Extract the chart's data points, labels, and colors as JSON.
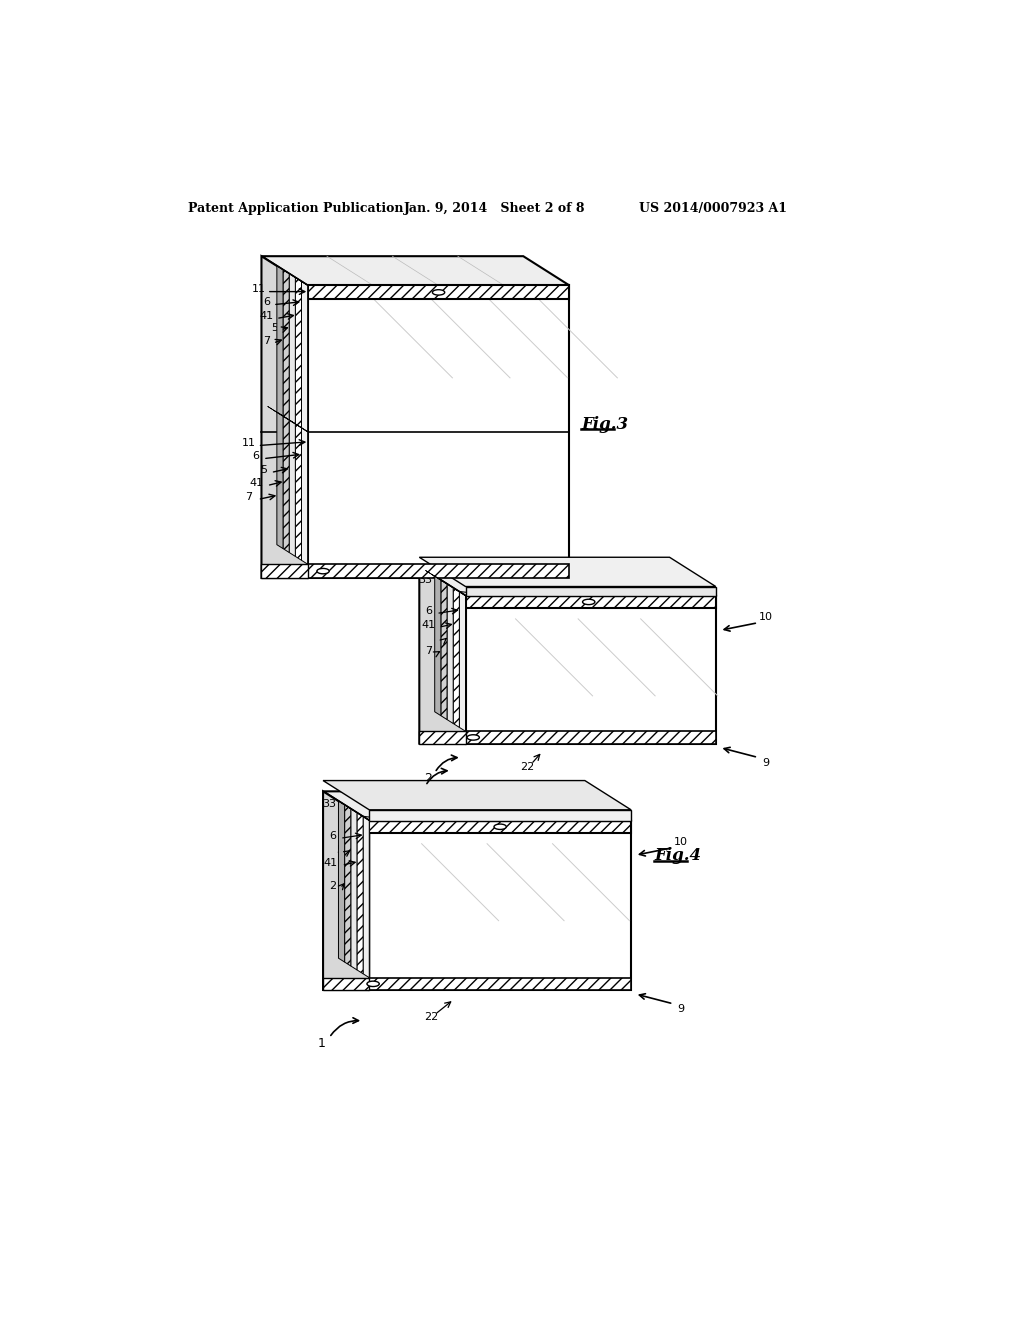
{
  "background_color": "#ffffff",
  "header_left": "Patent Application Publication",
  "header_mid": "Jan. 9, 2014   Sheet 2 of 8",
  "header_right": "US 2014/0007923 A1",
  "fig3_label": "Fig.3",
  "fig4_label": "Fig.4",
  "line_color": "#000000",
  "face_white": "#ffffff",
  "face_light": "#eeeeee",
  "face_mid": "#d8d8d8",
  "face_dark": "#bbbbbb"
}
